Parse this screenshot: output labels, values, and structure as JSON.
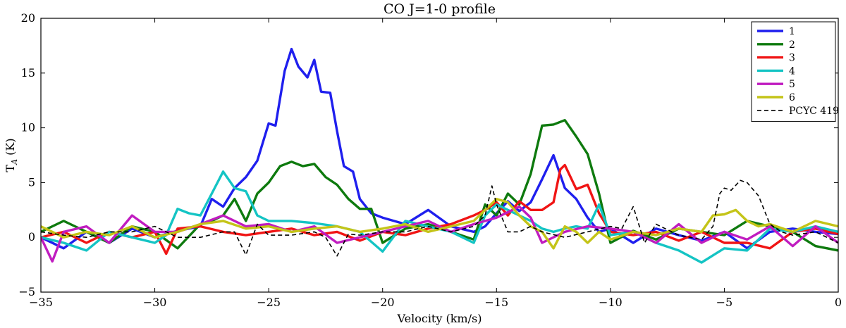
{
  "chart_data": {
    "type": "line",
    "title": "CO J=1-0 profile",
    "xlabel": "Velocity (km/s)",
    "ylabel": "T_A (K)",
    "ylabel_main": "T",
    "ylabel_sub": "A",
    "ylabel_unit": " (K)",
    "xlim": [
      -35,
      0
    ],
    "ylim": [
      -5,
      20
    ],
    "xticks": [
      -35,
      -30,
      -25,
      -20,
      -15,
      -10,
      -5,
      0
    ],
    "xtick_labels": [
      "−35",
      "−30",
      "−25",
      "−20",
      "−15",
      "−10",
      "−5",
      "0"
    ],
    "yticks": [
      -5,
      0,
      5,
      10,
      15,
      20
    ],
    "ytick_labels": [
      "−5",
      "0",
      "5",
      "10",
      "15",
      "20"
    ],
    "legend_position": "top-right",
    "series": [
      {
        "name": "1",
        "color": "#1f1fee",
        "style": "solid",
        "x": [
          -35,
          -34,
          -33,
          -32,
          -31,
          -30,
          -29,
          -28,
          -27.5,
          -27,
          -26.5,
          -26,
          -25.5,
          -25,
          -24.7,
          -24.3,
          -24,
          -23.7,
          -23.3,
          -23,
          -22.7,
          -22.3,
          -22,
          -21.7,
          -21.3,
          -21,
          -20.5,
          -20,
          -19,
          -18,
          -17,
          -16,
          -15.5,
          -15,
          -14.5,
          -14,
          -13.5,
          -13,
          -12.5,
          -12,
          -11.5,
          -11,
          -10.5,
          -10,
          -9,
          -8,
          -7,
          -6,
          -5,
          -4,
          -3,
          -2,
          -1,
          0
        ],
        "values": [
          0,
          -1,
          0.5,
          -0.5,
          0.8,
          0,
          0.6,
          1,
          3.5,
          2.8,
          4.5,
          5.5,
          7,
          10.4,
          10.2,
          15.2,
          17.2,
          15.6,
          14.6,
          16.2,
          13.3,
          13.2,
          9.7,
          6.5,
          6,
          3.5,
          2.2,
          1.8,
          1.2,
          2.5,
          1,
          0.5,
          1,
          2.2,
          3.3,
          2.4,
          3.2,
          5.3,
          7.5,
          4.5,
          3.5,
          1.8,
          0.5,
          0.8,
          -0.5,
          0.8,
          0.2,
          -0.3,
          0.5,
          -1,
          0.5,
          0.8,
          0.5,
          0.3
        ]
      },
      {
        "name": "2",
        "color": "#0e7a0e",
        "style": "solid",
        "x": [
          -35,
          -34,
          -33,
          -32,
          -31,
          -30,
          -29,
          -28,
          -27.5,
          -27,
          -26.5,
          -26,
          -25.5,
          -25,
          -24.5,
          -24,
          -23.5,
          -23,
          -22.5,
          -22,
          -21.5,
          -21,
          -20.5,
          -20,
          -19,
          -18,
          -17,
          -16,
          -15.5,
          -15,
          -14.5,
          -14,
          -13.5,
          -13,
          -12.5,
          -12,
          -11.5,
          -11,
          -10.5,
          -10,
          -9,
          -8,
          -7,
          -6,
          -5,
          -4,
          -3,
          -2,
          -1,
          0
        ],
        "values": [
          0.5,
          1.5,
          0.5,
          -0.5,
          1,
          0.5,
          -1,
          1.2,
          1.5,
          2,
          3.5,
          1.5,
          4,
          5,
          6.5,
          6.9,
          6.5,
          6.7,
          5.5,
          4.8,
          3.5,
          2.6,
          2.6,
          -0.5,
          0.8,
          1.2,
          0.5,
          -0.2,
          3,
          2,
          4,
          3,
          5.8,
          10.2,
          10.3,
          10.7,
          9.2,
          7.6,
          4,
          -0.5,
          0.6,
          -0.2,
          0.8,
          0.5,
          0.2,
          1.5,
          1,
          0.5,
          -0.8,
          -1.2
        ]
      },
      {
        "name": "3",
        "color": "#f01414",
        "style": "solid",
        "x": [
          -35,
          -34,
          -33,
          -32,
          -31,
          -30,
          -29.5,
          -29,
          -28,
          -27,
          -26,
          -25,
          -24,
          -23,
          -22,
          -21,
          -20,
          -19,
          -18,
          -17,
          -16,
          -15.5,
          -15,
          -14.5,
          -14,
          -13.5,
          -13,
          -12.5,
          -12.2,
          -12,
          -11.5,
          -11,
          -10.5,
          -10,
          -9,
          -8,
          -7,
          -6,
          -5,
          -4,
          -3,
          -2,
          -1,
          0
        ],
        "values": [
          0,
          0.5,
          -0.5,
          0.5,
          0,
          0.5,
          -1.5,
          0.8,
          1,
          0.5,
          0.2,
          0.5,
          0.8,
          0.2,
          0.5,
          -0.3,
          0.5,
          0.2,
          0.8,
          1.2,
          2,
          2.5,
          3.2,
          2,
          3.3,
          2.5,
          2.5,
          3.2,
          6.2,
          6.6,
          4.4,
          4.8,
          2.2,
          0.5,
          0.2,
          0.5,
          -0.3,
          0.5,
          -0.5,
          -0.5,
          -1,
          0.5,
          0.8,
          0.3
        ]
      },
      {
        "name": "4",
        "color": "#14c4c4",
        "style": "solid",
        "x": [
          -35,
          -34,
          -33,
          -32,
          -31,
          -30,
          -29.5,
          -29,
          -28.5,
          -28,
          -27.5,
          -27,
          -26.5,
          -26,
          -25.5,
          -25,
          -24.5,
          -24,
          -23.5,
          -23,
          -22,
          -21,
          -20,
          -19,
          -18,
          -17,
          -16,
          -15.5,
          -15,
          -14.5,
          -14,
          -13.5,
          -13,
          -12.5,
          -12,
          -11.5,
          -11,
          -10.5,
          -10,
          -9,
          -8,
          -7,
          -6,
          -5,
          -4,
          -3,
          -2,
          -1,
          0
        ],
        "values": [
          0,
          -0.5,
          -1.2,
          0.5,
          0,
          -0.5,
          0.2,
          2.6,
          2.2,
          2,
          4,
          6,
          4.5,
          4.2,
          2,
          1.5,
          1.5,
          1.5,
          1.4,
          1.3,
          1,
          0.5,
          -1.3,
          1.5,
          1,
          0.5,
          -0.5,
          2,
          3,
          2.5,
          2,
          1.5,
          0.8,
          0.5,
          0.8,
          1,
          0.8,
          3,
          0.2,
          0.5,
          -0.5,
          -1.2,
          -2.3,
          -1,
          -1.2,
          0.8,
          0.5,
          1,
          0.5
        ]
      },
      {
        "name": "5",
        "color": "#c01cc0",
        "style": "solid",
        "x": [
          -35,
          -34.5,
          -34,
          -33,
          -32,
          -31,
          -30,
          -29,
          -28,
          -27,
          -26,
          -25,
          -24,
          -23,
          -22,
          -21,
          -20,
          -19,
          -18,
          -17,
          -16,
          -15,
          -14,
          -13.5,
          -13,
          -12,
          -11,
          -10,
          -9,
          -8,
          -7,
          -6,
          -5,
          -4,
          -3,
          -2,
          -1,
          0
        ],
        "values": [
          0,
          -2.2,
          0.5,
          1,
          -0.5,
          2,
          0.5,
          0.5,
          1.2,
          2,
          1,
          1.2,
          0.5,
          1,
          -0.5,
          0,
          0.5,
          1,
          1.5,
          0.5,
          1.2,
          1.8,
          2.8,
          1.8,
          -0.5,
          0.5,
          1,
          0.8,
          0.5,
          -0.5,
          1.2,
          -0.5,
          0.5,
          -0.2,
          1,
          -0.8,
          1,
          -0.5
        ]
      },
      {
        "name": "6",
        "color": "#c4c418",
        "style": "solid",
        "x": [
          -35,
          -34,
          -33,
          -32,
          -31,
          -30,
          -29,
          -28,
          -27,
          -26,
          -25,
          -24,
          -23,
          -22,
          -21,
          -20,
          -19,
          -18,
          -17,
          -16,
          -15.5,
          -15,
          -14.5,
          -14,
          -13.5,
          -13,
          -12.5,
          -12,
          -11.5,
          -11,
          -10.5,
          -10,
          -9,
          -8,
          -7,
          -6,
          -5.5,
          -5,
          -4.5,
          -4,
          -3.5,
          -3,
          -2,
          -1,
          0
        ],
        "values": [
          1,
          0,
          0.5,
          0.2,
          1,
          0,
          0.5,
          1.2,
          1.5,
          0.8,
          1,
          0.5,
          0.8,
          1,
          0.5,
          0.8,
          1.2,
          0.5,
          1,
          1.5,
          2.5,
          3.5,
          3.2,
          2,
          1,
          0.5,
          -1,
          1,
          0.5,
          -0.5,
          0.5,
          -0.2,
          0.5,
          0.2,
          0.8,
          0.5,
          2,
          2.1,
          2.5,
          1.5,
          1,
          1.2,
          0.5,
          1.5,
          1
        ]
      },
      {
        "name": "PCYC 419",
        "color": "#000000",
        "style": "dashed",
        "x": [
          -35,
          -34,
          -33,
          -32,
          -31,
          -30,
          -29,
          -28,
          -27,
          -26.5,
          -26,
          -25.5,
          -25,
          -24,
          -23,
          -22.5,
          -22,
          -21.5,
          -21,
          -20,
          -19,
          -18,
          -17,
          -16,
          -15.5,
          -15.2,
          -15,
          -14.5,
          -14,
          -13.5,
          -13,
          -12,
          -11,
          -10,
          -9.5,
          -9,
          -8.5,
          -8,
          -7,
          -6,
          -5.5,
          -5.2,
          -5,
          -4.7,
          -4.3,
          -4,
          -3.5,
          -3,
          -2.5,
          -2,
          -1,
          0
        ],
        "values": [
          0.5,
          0.2,
          0,
          0.5,
          0.5,
          1,
          0,
          0,
          0.5,
          0.5,
          -1.6,
          1.2,
          0.2,
          0.2,
          0.5,
          0,
          -1.7,
          0.3,
          0.2,
          0.5,
          0.5,
          1,
          0.5,
          1,
          2,
          4.7,
          3,
          0.5,
          0.5,
          1,
          0.5,
          0,
          0.5,
          1,
          0.8,
          2.8,
          -0.5,
          1.2,
          0.2,
          -0.2,
          1,
          4,
          4.5,
          4.3,
          5.2,
          5,
          3.8,
          1.2,
          0.5,
          0.2,
          0.5,
          -0.5
        ]
      }
    ]
  }
}
